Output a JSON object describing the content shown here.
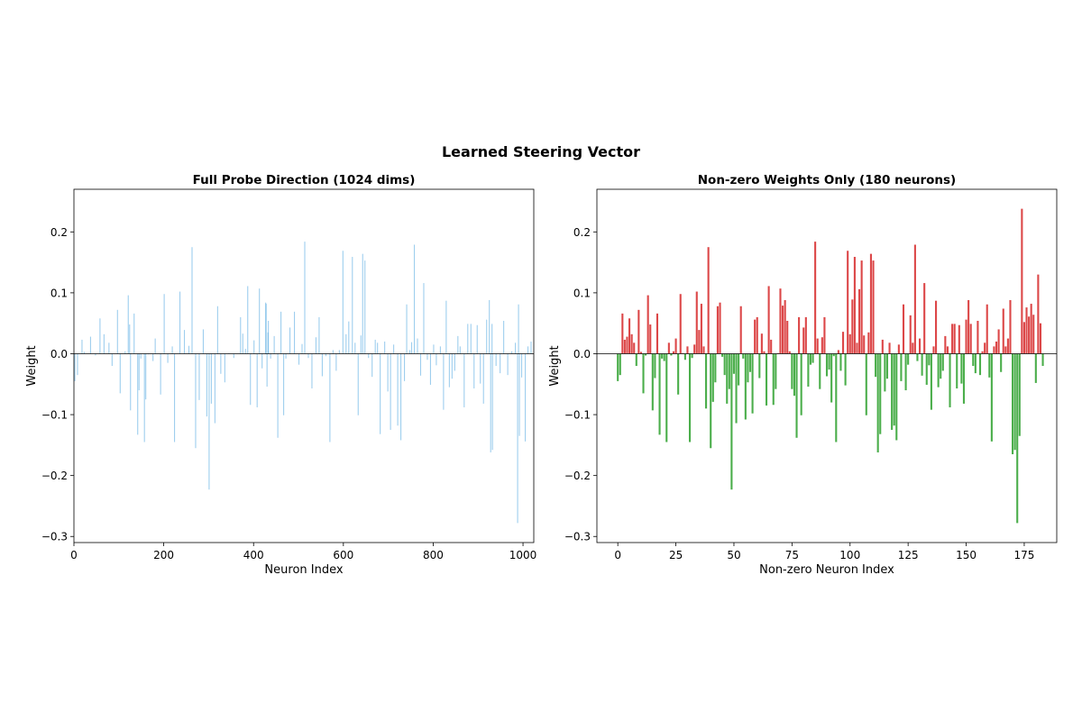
{
  "figure": {
    "suptitle": "Learned Steering Vector"
  },
  "chart_data": [
    {
      "type": "bar",
      "title": "Full Probe Direction (1024 dims)",
      "xlabel": "Neuron Index",
      "ylabel": "Weight",
      "xlim": [
        0,
        1024
      ],
      "ylim": [
        -0.31,
        0.27
      ],
      "xticks": [
        0,
        200,
        400,
        600,
        800,
        1000
      ],
      "xtick_labels": [
        "0",
        "200",
        "400",
        "600",
        "800",
        "1000"
      ],
      "yticks": [
        -0.3,
        -0.2,
        -0.1,
        0.0,
        0.1,
        0.2
      ],
      "ytick_labels": [
        "−0.3",
        "−0.2",
        "−0.1",
        "0.0",
        "0.1",
        "0.2"
      ],
      "bar_color": "#5dade2",
      "x": [
        2,
        8,
        18,
        23,
        37,
        48,
        58,
        67,
        78,
        85,
        97,
        103,
        114,
        121,
        126,
        134,
        142,
        149,
        157,
        166,
        176,
        181,
        193,
        201,
        209,
        219,
        224,
        236,
        246,
        256,
        263,
        271,
        279,
        288,
        296,
        301,
        306,
        314,
        320,
        327,
        336,
        345,
        356,
        371,
        376,
        382,
        387,
        393,
        401,
        408,
        413,
        419,
        427,
        433,
        438,
        446,
        454,
        461,
        467,
        472,
        481,
        491,
        501,
        508,
        514,
        522,
        530,
        539,
        546,
        553,
        561,
        570,
        577,
        584,
        591,
        599,
        606,
        612,
        620,
        626,
        633,
        639,
        643,
        648,
        656,
        664,
        671,
        676,
        682,
        692,
        699,
        705,
        712,
        721,
        728,
        736,
        741,
        748,
        752,
        758,
        765,
        772,
        779,
        787,
        794,
        801,
        807,
        816,
        823,
        829,
        836,
        842,
        848,
        855,
        860,
        869,
        877,
        884,
        891,
        898,
        905,
        912,
        919,
        925,
        931,
        940,
        949,
        957,
        966,
        975,
        983,
        990,
        997,
        1005,
        1011,
        1018
      ],
      "values": [
        -0.045,
        -0.035,
        0.023,
        0.003,
        0.028,
        -0.003,
        0.058,
        0.032,
        0.018,
        -0.02,
        0.072,
        -0.065,
        0.004,
        0.096,
        -0.093,
        0.066,
        -0.133,
        -0.008,
        -0.145,
        -0.001,
        -0.012,
        0.025,
        -0.067,
        0.098,
        -0.015,
        0.012,
        -0.145,
        0.102,
        0.039,
        0.013,
        0.175,
        -0.155,
        -0.076,
        0.04,
        -0.103,
        -0.223,
        -0.082,
        -0.114,
        0.078,
        -0.033,
        -0.047,
        0.001,
        -0.007,
        0.06,
        0.033,
        0.008,
        0.111,
        -0.084,
        0.022,
        -0.088,
        0.107,
        -0.024,
        0.084,
        0.054,
        -0.008,
        0.029,
        -0.138,
        0.069,
        -0.101,
        -0.008,
        0.043,
        0.069,
        -0.018,
        0.016,
        0.184,
        -0.007,
        -0.057,
        0.027,
        0.06,
        -0.037,
        -0.004,
        -0.145,
        0.006,
        -0.028,
        0.006,
        0.169,
        0.032,
        0.053,
        0.159,
        0.018,
        -0.101,
        0.03,
        0.164,
        0.153,
        -0.007,
        -0.038,
        0.023,
        0.018,
        -0.132,
        0.02,
        -0.062,
        -0.125,
        0.015,
        -0.118,
        -0.142,
        -0.045,
        0.081,
        0.006,
        0.019,
        0.179,
        0.025,
        -0.036,
        0.116,
        -0.01,
        -0.051,
        0.015,
        -0.019,
        0.012,
        -0.092,
        0.087,
        -0.055,
        -0.041,
        -0.028,
        0.029,
        0.012,
        -0.088,
        0.049,
        0.049,
        -0.057,
        0.047,
        -0.049,
        -0.082,
        0.056,
        0.088,
        0.049,
        -0.02,
        -0.032,
        0.054,
        -0.035,
        0.004,
        0.018,
        0.081,
        -0.039,
        -0.144,
        0.012,
        0.02
      ],
      "overlay_x": [
        124,
        145,
        160,
        428,
        430,
        432,
        928,
        932,
        988,
        992
      ],
      "overlay_values": [
        0.048,
        -0.06,
        -0.075,
        0.082,
        -0.054,
        0.035,
        -0.162,
        -0.158,
        -0.278,
        -0.135
      ]
    },
    {
      "type": "bar",
      "title": "Non-zero Weights Only (180 neurons)",
      "xlabel": "Non-zero Neuron Index",
      "ylabel": "Weight",
      "xlim": [
        -9,
        189
      ],
      "ylim": [
        -0.31,
        0.27
      ],
      "xticks": [
        0,
        25,
        50,
        75,
        100,
        125,
        150,
        175
      ],
      "xtick_labels": [
        "0",
        "25",
        "50",
        "75",
        "100",
        "125",
        "150",
        "175"
      ],
      "yticks": [
        -0.3,
        -0.2,
        -0.1,
        0.0,
        0.1,
        0.2
      ],
      "ytick_labels": [
        "−0.3",
        "−0.2",
        "−0.1",
        "0.0",
        "0.1",
        "0.2"
      ],
      "positive_color": "#d62728",
      "negative_color": "#2ca02c",
      "values": [
        -0.045,
        -0.035,
        0.066,
        0.023,
        0.028,
        0.058,
        0.032,
        0.018,
        -0.02,
        0.072,
        0.003,
        -0.065,
        -0.003,
        0.096,
        0.048,
        -0.093,
        -0.04,
        0.066,
        -0.133,
        -0.008,
        -0.012,
        -0.145,
        0.018,
        -0.003,
        0.004,
        0.025,
        -0.067,
        0.098,
        0.001,
        -0.01,
        0.012,
        -0.145,
        -0.007,
        0.015,
        0.102,
        0.039,
        0.082,
        0.012,
        -0.09,
        0.175,
        -0.155,
        -0.079,
        -0.047,
        0.078,
        0.084,
        -0.005,
        -0.035,
        -0.082,
        -0.058,
        -0.223,
        -0.033,
        -0.114,
        -0.052,
        0.078,
        -0.008,
        -0.108,
        -0.047,
        -0.03,
        -0.098,
        0.056,
        0.06,
        -0.04,
        0.033,
        0.004,
        -0.085,
        0.111,
        0.023,
        -0.084,
        -0.058,
        0.001,
        0.107,
        0.079,
        0.088,
        0.054,
        0.004,
        -0.058,
        -0.069,
        -0.138,
        0.06,
        -0.101,
        0.043,
        0.06,
        -0.054,
        -0.018,
        -0.015,
        0.184,
        0.025,
        -0.058,
        0.027,
        0.06,
        -0.037,
        -0.026,
        -0.08,
        -0.004,
        -0.145,
        0.006,
        -0.028,
        0.036,
        -0.052,
        0.169,
        0.032,
        0.089,
        0.159,
        0.018,
        0.106,
        0.153,
        0.03,
        -0.101,
        0.035,
        0.164,
        0.153,
        -0.038,
        -0.162,
        -0.132,
        0.023,
        -0.062,
        -0.041,
        0.018,
        -0.125,
        -0.118,
        -0.142,
        0.015,
        -0.045,
        0.081,
        -0.06,
        -0.018,
        0.063,
        0.018,
        0.179,
        -0.012,
        0.025,
        -0.036,
        0.116,
        -0.051,
        -0.019,
        -0.092,
        0.012,
        0.087,
        -0.055,
        -0.041,
        -0.028,
        0.029,
        0.012,
        -0.088,
        0.049,
        0.049,
        -0.057,
        0.047,
        -0.049,
        -0.082,
        0.056,
        0.088,
        0.049,
        -0.02,
        -0.032,
        0.054,
        -0.035,
        0.004,
        0.018,
        0.081,
        -0.039,
        -0.144,
        0.012,
        0.02,
        0.04,
        -0.03,
        0.074,
        0.012,
        0.025,
        0.088,
        -0.165,
        -0.158,
        -0.278,
        -0.135,
        0.238,
        0.052,
        0.076,
        0.061,
        0.082,
        0.064,
        -0.048,
        0.13,
        0.05,
        -0.02
      ]
    }
  ]
}
